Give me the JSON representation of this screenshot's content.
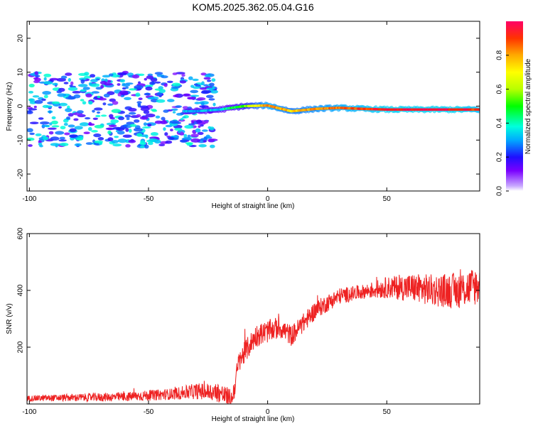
{
  "title": "KOM5.2025.362.05.04.G16",
  "chart_data": [
    {
      "type": "heatmap",
      "xlabel": "Height of straight line (km)",
      "ylabel": "Frequency (Hz)",
      "xlim": [
        -101,
        89
      ],
      "ylim": [
        -25,
        25
      ],
      "xticks": [
        -100,
        -50,
        0,
        50
      ],
      "yticks": [
        -20,
        -10,
        0,
        10,
        20
      ],
      "colorbar": {
        "label": "Normalized spectral amplitude",
        "range": [
          0,
          1
        ],
        "ticks": [
          "0.0",
          "0.2",
          "0.4",
          "0.6",
          "0.8"
        ]
      },
      "ridge": [
        {
          "x": -30,
          "freq": -1.5,
          "amp": 0.3
        },
        {
          "x": -20,
          "freq": -1.0,
          "amp": 0.35
        },
        {
          "x": -10,
          "freq": 0.0,
          "amp": 0.55
        },
        {
          "x": 0,
          "freq": 0.2,
          "amp": 0.85
        },
        {
          "x": 10,
          "freq": -1.5,
          "amp": 0.75
        },
        {
          "x": 20,
          "freq": -0.8,
          "amp": 0.8
        },
        {
          "x": 30,
          "freq": -0.5,
          "amp": 0.85
        },
        {
          "x": 40,
          "freq": -0.8,
          "amp": 0.9
        },
        {
          "x": 50,
          "freq": -1.0,
          "amp": 0.95
        },
        {
          "x": 60,
          "freq": -1.0,
          "amp": 0.95
        },
        {
          "x": 70,
          "freq": -1.0,
          "amp": 0.95
        },
        {
          "x": 80,
          "freq": -1.0,
          "amp": 0.95
        },
        {
          "x": 89,
          "freq": -1.0,
          "amp": 0.9
        }
      ],
      "scatter_region": {
        "x_range": [
          -100,
          -30
        ],
        "freq_range": [
          -12,
          10
        ],
        "amp_range": [
          0.1,
          0.4
        ]
      }
    },
    {
      "type": "line",
      "xlabel": "Height of straight line (km)",
      "ylabel": "SNR (v/v)",
      "xlim": [
        -101,
        89
      ],
      "ylim": [
        0,
        600
      ],
      "xticks": [
        -100,
        -50,
        0,
        50
      ],
      "yticks": [
        200,
        400,
        600
      ],
      "color": "#ee2222",
      "trend": [
        {
          "x": -100,
          "y": 20
        },
        {
          "x": -60,
          "y": 25
        },
        {
          "x": -40,
          "y": 35
        },
        {
          "x": -30,
          "y": 45
        },
        {
          "x": -20,
          "y": 40
        },
        {
          "x": -15,
          "y": 10
        },
        {
          "x": -12,
          "y": 150
        },
        {
          "x": -5,
          "y": 240
        },
        {
          "x": 5,
          "y": 270
        },
        {
          "x": 10,
          "y": 240
        },
        {
          "x": 20,
          "y": 330
        },
        {
          "x": 30,
          "y": 380
        },
        {
          "x": 40,
          "y": 395
        },
        {
          "x": 50,
          "y": 410
        },
        {
          "x": 60,
          "y": 410
        },
        {
          "x": 70,
          "y": 400
        },
        {
          "x": 80,
          "y": 400
        },
        {
          "x": 89,
          "y": 420
        }
      ],
      "noise": [
        {
          "x": -100,
          "amp": 10
        },
        {
          "x": -40,
          "amp": 20
        },
        {
          "x": -15,
          "amp": 40
        },
        {
          "x": 0,
          "amp": 40
        },
        {
          "x": 40,
          "amp": 25
        },
        {
          "x": 60,
          "amp": 50
        },
        {
          "x": 89,
          "amp": 70
        }
      ]
    }
  ]
}
